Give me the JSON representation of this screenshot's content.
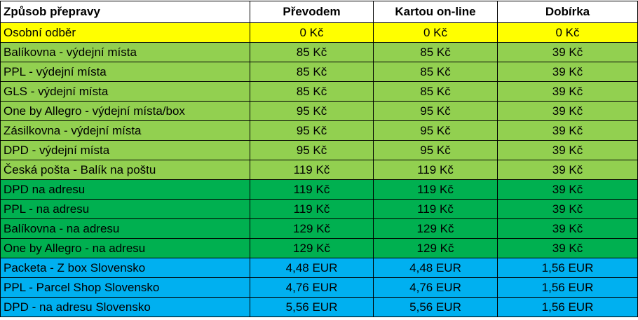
{
  "table": {
    "header": [
      "Způsob přepravy",
      "Převodem",
      "Kartou on-line",
      "Dobírka"
    ],
    "groups": [
      {
        "color": "#ffff00",
        "rows": [
          [
            "Osobní odběr",
            "0 Kč",
            "0 Kč",
            "0 Kč"
          ]
        ]
      },
      {
        "color": "#92d050",
        "rows": [
          [
            "Balíkovna - výdejní místa",
            "85 Kč",
            "85 Kč",
            "39 Kč"
          ],
          [
            "PPL - výdejní místa",
            "85 Kč",
            "85 Kč",
            "39 Kč"
          ],
          [
            "GLS - výdejní místa",
            "85 Kč",
            "85 Kč",
            "39 Kč"
          ],
          [
            "One by Allegro - výdejní místa/box",
            "95 Kč",
            "95 Kč",
            "39 Kč"
          ],
          [
            "Zásilkovna - výdejní místa",
            "95 Kč",
            "95 Kč",
            "39 Kč"
          ],
          [
            "DPD - výdejní místa",
            "95 Kč",
            "95 Kč",
            "39 Kč"
          ],
          [
            "Česká pošta - Balík na poštu",
            "119 Kč",
            "119 Kč",
            "39 Kč"
          ]
        ]
      },
      {
        "color": "#00b050",
        "rows": [
          [
            "DPD na adresu",
            "119 Kč",
            "119 Kč",
            "39 Kč"
          ],
          [
            "PPL - na adresu",
            "119 Kč",
            "119 Kč",
            "39 Kč"
          ],
          [
            "Balíkovna - na adresu",
            "129 Kč",
            "129 Kč",
            "39 Kč"
          ],
          [
            "One by Allegro - na adresu",
            "129 Kč",
            "129 Kč",
            "39 Kč"
          ]
        ]
      },
      {
        "color": "#00b0f0",
        "rows": [
          [
            "Packeta - Z box Slovensko",
            "4,48 EUR",
            "4,48 EUR",
            "1,56 EUR"
          ],
          [
            "PPL - Parcel Shop Slovensko",
            "4,76 EUR",
            "4,76 EUR",
            "1,56 EUR"
          ],
          [
            "DPD - na adresu Slovensko",
            "5,56 EUR",
            "5,56 EUR",
            "1,56 EUR"
          ]
        ]
      }
    ]
  }
}
